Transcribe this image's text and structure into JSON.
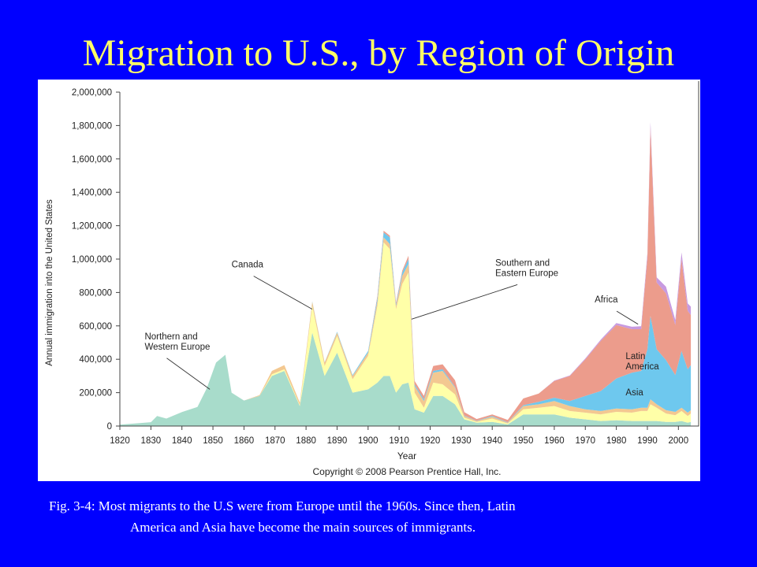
{
  "title": "Migration to U.S., by Region of Origin",
  "caption": {
    "line1": "Fig. 3-4: Most migrants to the U.S were from Europe until the 1960s.  Since then, Latin",
    "line2": "America and Asia have become the main sources of immigrants."
  },
  "chart_data": {
    "type": "area",
    "stacked": true,
    "xlabel": "Year",
    "ylabel": "Annual immigration into the United States",
    "xlim": [
      1820,
      2005
    ],
    "ylim": [
      0,
      2000000
    ],
    "x_ticks": [
      1820,
      1830,
      1840,
      1850,
      1860,
      1870,
      1880,
      1890,
      1900,
      1910,
      1920,
      1930,
      1940,
      1950,
      1960,
      1970,
      1980,
      1990,
      2000
    ],
    "y_ticks": [
      0,
      200000,
      400000,
      600000,
      800000,
      1000000,
      1200000,
      1400000,
      1600000,
      1800000,
      2000000
    ],
    "y_tick_labels": [
      "0",
      "200,000",
      "400,000",
      "600,000",
      "800,000",
      "1,000,000",
      "1,200,000",
      "1,400,000",
      "1,600,000",
      "1,800,000",
      "2,000,000"
    ],
    "grid": false,
    "copyright": "Copyright © 2008 Pearson Prentice Hall, Inc.",
    "x": [
      1820,
      1830,
      1832,
      1835,
      1840,
      1845,
      1848,
      1851,
      1854,
      1856,
      1860,
      1865,
      1869,
      1873,
      1878,
      1882,
      1886,
      1890,
      1895,
      1900,
      1903,
      1905,
      1907,
      1909,
      1911,
      1913,
      1915,
      1918,
      1921,
      1924,
      1928,
      1931,
      1935,
      1940,
      1945,
      1950,
      1955,
      1960,
      1965,
      1970,
      1975,
      1980,
      1985,
      1988,
      1990,
      1991,
      1993,
      1996,
      1999,
      2001,
      2003,
      2004
    ],
    "series": [
      {
        "color": "#a8dccb",
        "values": [
          8000,
          23000,
          60000,
          45000,
          84000,
          114000,
          226000,
          380000,
          427000,
          200000,
          153000,
          180000,
          300000,
          330000,
          120000,
          560000,
          300000,
          440000,
          200000,
          220000,
          260000,
          300000,
          300000,
          200000,
          250000,
          260000,
          100000,
          80000,
          180000,
          180000,
          130000,
          40000,
          20000,
          25000,
          10000,
          70000,
          70000,
          70000,
          50000,
          40000,
          30000,
          35000,
          30000,
          30000,
          30000,
          30000,
          30000,
          25000,
          25000,
          30000,
          20000,
          25000
        ]
      },
      {
        "color": "#ffffa8",
        "values": [
          0,
          0,
          0,
          0,
          0,
          0,
          0,
          0,
          0,
          0,
          0,
          0,
          10000,
          10000,
          5000,
          160000,
          60000,
          100000,
          80000,
          200000,
          460000,
          800000,
          760000,
          500000,
          600000,
          660000,
          100000,
          30000,
          80000,
          70000,
          60000,
          10000,
          5000,
          20000,
          5000,
          30000,
          40000,
          50000,
          40000,
          40000,
          40000,
          50000,
          50000,
          60000,
          60000,
          100000,
          80000,
          50000,
          40000,
          60000,
          40000,
          50000
        ]
      },
      {
        "color": "#f3c891",
        "values": [
          0,
          0,
          0,
          0,
          0,
          0,
          0,
          0,
          0,
          0,
          0,
          5000,
          20000,
          25000,
          15000,
          25000,
          20000,
          20000,
          20000,
          20000,
          30000,
          30000,
          30000,
          20000,
          50000,
          50000,
          40000,
          40000,
          60000,
          80000,
          40000,
          10000,
          5000,
          10000,
          5000,
          20000,
          20000,
          30000,
          30000,
          20000,
          20000,
          20000,
          20000,
          20000,
          20000,
          30000,
          20000,
          20000,
          20000,
          20000,
          20000,
          20000
        ]
      },
      {
        "color": "#6ec8ee",
        "values": [
          0,
          0,
          0,
          0,
          0,
          0,
          0,
          0,
          0,
          0,
          0,
          0,
          0,
          0,
          0,
          2000,
          2000,
          5000,
          5000,
          10000,
          20000,
          30000,
          40000,
          10000,
          20000,
          30000,
          10000,
          10000,
          10000,
          10000,
          5000,
          3000,
          2000,
          5000,
          2000,
          5000,
          15000,
          20000,
          30000,
          80000,
          120000,
          180000,
          220000,
          220000,
          350000,
          500000,
          330000,
          300000,
          220000,
          340000,
          260000,
          270000
        ]
      },
      {
        "color": "#ec9c8c",
        "values": [
          0,
          0,
          0,
          0,
          0,
          0,
          0,
          0,
          0,
          0,
          0,
          0,
          0,
          0,
          0,
          0,
          0,
          0,
          0,
          0,
          10000,
          10000,
          10000,
          10000,
          10000,
          20000,
          20000,
          20000,
          30000,
          30000,
          40000,
          20000,
          10000,
          10000,
          15000,
          40000,
          50000,
          100000,
          150000,
          220000,
          300000,
          320000,
          260000,
          250000,
          550000,
          1130000,
          400000,
          400000,
          300000,
          550000,
          350000,
          300000
        ]
      },
      {
        "color": "#c79ae0",
        "values": [
          0,
          0,
          0,
          0,
          0,
          0,
          0,
          0,
          0,
          0,
          0,
          0,
          0,
          0,
          0,
          0,
          0,
          0,
          0,
          0,
          0,
          0,
          0,
          0,
          0,
          0,
          0,
          0,
          0,
          0,
          0,
          0,
          0,
          0,
          0,
          0,
          0,
          2000,
          3000,
          5000,
          8000,
          12000,
          15000,
          18000,
          25000,
          30000,
          30000,
          40000,
          30000,
          40000,
          45000,
          50000
        ]
      }
    ],
    "annotations": [
      {
        "lines": [
          "Northern and",
          "Western Europe"
        ],
        "x": 1849,
        "y": 220000,
        "text_x": 1828,
        "text_y": 520000
      },
      {
        "lines": [
          "Canada"
        ],
        "x": 1882,
        "y": 700000,
        "text_x": 1856,
        "text_y": 950000
      },
      {
        "lines": [
          "Southern and",
          "Eastern Europe"
        ],
        "x": 1914,
        "y": 640000,
        "text_x": 1941,
        "text_y": 960000
      },
      {
        "lines": [
          "Africa"
        ],
        "x": 1987,
        "y": 610000,
        "text_x": 1973,
        "text_y": 740000
      },
      {
        "lines": [
          "Latin",
          "America"
        ],
        "x": 1982,
        "y": 450000,
        "text_x": 1983,
        "text_y": 400000
      },
      {
        "lines": [
          "Asia"
        ],
        "x": 1982,
        "y": 185000,
        "text_x": 1983,
        "text_y": 185000
      }
    ]
  }
}
